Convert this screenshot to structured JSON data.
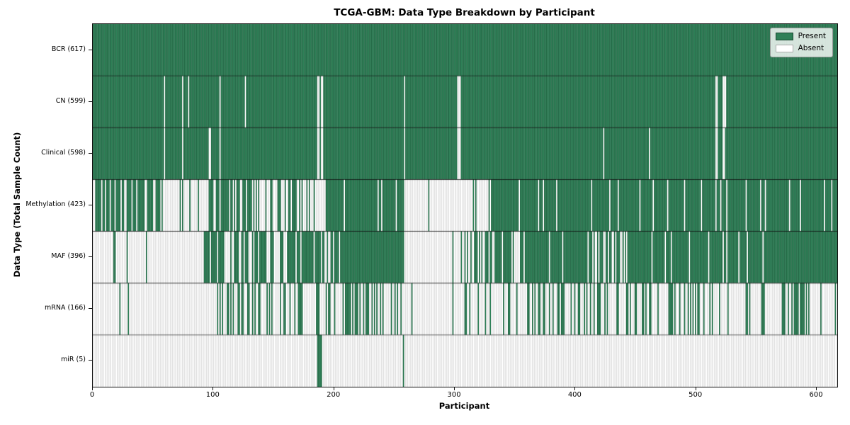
{
  "chart_data": {
    "type": "heatmap",
    "title": "TCGA-GBM: Data Type Breakdown by Participant",
    "xlabel": "Participant",
    "ylabel": "Data Type (Total Sample Count)",
    "x_ticks": [
      0,
      100,
      200,
      300,
      400,
      500,
      600
    ],
    "x_range": [
      0,
      617
    ],
    "n_participants": 617,
    "grid": "row-separators",
    "legend": {
      "position": "upper right",
      "entries": [
        {
          "label": "Present",
          "state": 1,
          "color": "#2e8057"
        },
        {
          "label": "Absent",
          "state": 0,
          "color": "#ffffff"
        }
      ]
    },
    "style": {
      "present_fill": "#2e8057",
      "present_edge": "rgba(0,0,0,0.50)",
      "absent_fill": "#ffffff",
      "absent_edge": "rgba(0,0,0,0.38)",
      "separator": "rgba(0,0,0,0.78)"
    },
    "rows": [
      {
        "data_type": "BCR",
        "present_count": 617,
        "label": "BCR (617)",
        "segments": [
          [
            0,
            617,
            1
          ]
        ]
      },
      {
        "data_type": "CN",
        "present_count": 599,
        "label": "CN (599)",
        "segments": [
          [
            0,
            59,
            1
          ],
          [
            59,
            60,
            0
          ],
          [
            60,
            74,
            1
          ],
          [
            74,
            75,
            0
          ],
          [
            75,
            79,
            1
          ],
          [
            79,
            80,
            0
          ],
          [
            80,
            105,
            1
          ],
          [
            105,
            106,
            0
          ],
          [
            106,
            126,
            1
          ],
          [
            126,
            127,
            0
          ],
          [
            127,
            186,
            1
          ],
          [
            186,
            188,
            0
          ],
          [
            188,
            189,
            1
          ],
          [
            189,
            191,
            0
          ],
          [
            191,
            258,
            1
          ],
          [
            258,
            259,
            0
          ],
          [
            259,
            302,
            1
          ],
          [
            302,
            305,
            0
          ],
          [
            305,
            516,
            1
          ],
          [
            516,
            518,
            0
          ],
          [
            518,
            522,
            1
          ],
          [
            522,
            525,
            0
          ],
          [
            525,
            617,
            1
          ]
        ]
      },
      {
        "data_type": "Clinical",
        "present_count": 598,
        "label": "Clinical (598)",
        "segments": [
          [
            0,
            59,
            1
          ],
          [
            59,
            60,
            0
          ],
          [
            60,
            74,
            1
          ],
          [
            74,
            75,
            0
          ],
          [
            75,
            96,
            1
          ],
          [
            96,
            98,
            0
          ],
          [
            98,
            105,
            1
          ],
          [
            105,
            106,
            0
          ],
          [
            106,
            186,
            1
          ],
          [
            186,
            188,
            0
          ],
          [
            188,
            189,
            1
          ],
          [
            189,
            191,
            0
          ],
          [
            191,
            258,
            1
          ],
          [
            258,
            259,
            0
          ],
          [
            259,
            302,
            1
          ],
          [
            302,
            305,
            0
          ],
          [
            305,
            423,
            1
          ],
          [
            423,
            424,
            0
          ],
          [
            424,
            461,
            1
          ],
          [
            461,
            462,
            0
          ],
          [
            462,
            516,
            1
          ],
          [
            516,
            518,
            0
          ],
          [
            518,
            522,
            1
          ],
          [
            522,
            524,
            0
          ],
          [
            524,
            617,
            1
          ]
        ]
      },
      {
        "data_type": "Methylation",
        "present_count": 423,
        "label": "Methylation (423)",
        "segments": [
          [
            0,
            58,
            0.62
          ],
          [
            58,
            95,
            0.06
          ],
          [
            95,
            124,
            0.72
          ],
          [
            124,
            136,
            0.5
          ],
          [
            136,
            153,
            0.3
          ],
          [
            153,
            176,
            0.5
          ],
          [
            176,
            196,
            0.3
          ],
          [
            196,
            258,
            0.95
          ],
          [
            258,
            315,
            0.02
          ],
          [
            315,
            330,
            0.5
          ],
          [
            330,
            617,
            0.93
          ]
        ]
      },
      {
        "data_type": "MAF",
        "present_count": 396,
        "label": "MAF (396)",
        "segments": [
          [
            0,
            17,
            0
          ],
          [
            17,
            19,
            1
          ],
          [
            19,
            28,
            0
          ],
          [
            28,
            29,
            1
          ],
          [
            29,
            92,
            0.02
          ],
          [
            92,
            109,
            0.85
          ],
          [
            109,
            124,
            0.45
          ],
          [
            124,
            144,
            0.8
          ],
          [
            144,
            163,
            0.5
          ],
          [
            163,
            206,
            0.8
          ],
          [
            206,
            258,
            1
          ],
          [
            258,
            304,
            0.03
          ],
          [
            304,
            330,
            0.5
          ],
          [
            330,
            349,
            0.85
          ],
          [
            349,
            354,
            0
          ],
          [
            354,
            412,
            0.85
          ],
          [
            412,
            439,
            0.65
          ],
          [
            439,
            560,
            0.88
          ],
          [
            560,
            617,
            1
          ]
        ]
      },
      {
        "data_type": "mRNA",
        "present_count": 166,
        "label": "mRNA (166)",
        "segments": [
          [
            0,
            22,
            0
          ],
          [
            22,
            23,
            1
          ],
          [
            23,
            29,
            0
          ],
          [
            29,
            30,
            1
          ],
          [
            30,
            92,
            0
          ],
          [
            92,
            124,
            0.35
          ],
          [
            124,
            153,
            0.25
          ],
          [
            153,
            206,
            0.25
          ],
          [
            206,
            235,
            0.7
          ],
          [
            235,
            258,
            0.35
          ],
          [
            258,
            307,
            0.04
          ],
          [
            307,
            330,
            0.35
          ],
          [
            330,
            360,
            0.15
          ],
          [
            360,
            414,
            0.35
          ],
          [
            414,
            530,
            0.4
          ],
          [
            530,
            570,
            0.3
          ],
          [
            570,
            591,
            0.6
          ],
          [
            591,
            617,
            0.15
          ]
        ]
      },
      {
        "data_type": "miR",
        "present_count": 5,
        "label": "miR (5)",
        "segments": [
          [
            0,
            186,
            0
          ],
          [
            186,
            190,
            1
          ],
          [
            190,
            257,
            0
          ],
          [
            257,
            258,
            1
          ],
          [
            258,
            617,
            0
          ]
        ]
      }
    ]
  }
}
